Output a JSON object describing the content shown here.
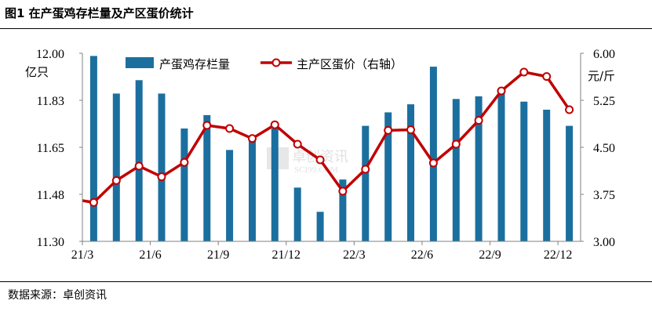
{
  "figure_title": "图1 在产蛋鸡存栏量及产区蛋价统计",
  "source": "数据来源：卓创资讯",
  "watermark": {
    "cn": "卓创资讯",
    "en": "SCI99.COM"
  },
  "colors": {
    "bar": "#1b6f9f",
    "line": "#c00000",
    "marker_fill": "#ffffff",
    "axis": "#808080"
  },
  "chart_data": {
    "type": "bar+line",
    "title": "图1 在产蛋鸡存栏量及产区蛋价统计",
    "left_axis": {
      "unit": "亿只",
      "ticks": [
        "12.00",
        "11.83",
        "11.65",
        "11.48",
        "11.30"
      ],
      "min": 11.3,
      "max": 12.0
    },
    "right_axis": {
      "unit": "元/斤",
      "ticks": [
        "6.00",
        "5.25",
        "4.50",
        "3.75",
        "3.00"
      ],
      "min": 3.0,
      "max": 6.0
    },
    "x_tick_labels": [
      "21/3",
      "21/6",
      "21/9",
      "21/12",
      "22/3",
      "22/6",
      "22/9",
      "22/12"
    ],
    "x_tick_months": [
      "2021-03",
      "2021-06",
      "2021-09",
      "2021-12",
      "2022-03",
      "2022-06",
      "2022-09",
      "2022-12"
    ],
    "months": [
      "2021-03",
      "2021-04",
      "2021-05",
      "2021-06",
      "2021-07",
      "2021-08",
      "2021-09",
      "2021-10",
      "2021-11",
      "2021-12",
      "2022-01",
      "2022-02",
      "2022-03",
      "2022-04",
      "2022-05",
      "2022-06",
      "2022-07",
      "2022-08",
      "2022-09",
      "2022-10",
      "2022-11",
      "2022-12"
    ],
    "series": [
      {
        "name": "产蛋鸡存栏量",
        "type": "bar",
        "axis": "left",
        "values": [
          11.99,
          11.85,
          11.9,
          11.85,
          11.72,
          11.77,
          11.64,
          11.69,
          11.72,
          11.5,
          11.41,
          11.53,
          11.73,
          11.78,
          11.81,
          11.95,
          11.83,
          11.84,
          11.85,
          11.82,
          11.79,
          11.73
        ]
      },
      {
        "name": "主产区蛋价（右轴）",
        "type": "line",
        "axis": "right",
        "marker": "circle",
        "start_value": 3.65,
        "values": [
          3.62,
          3.97,
          4.2,
          4.03,
          4.26,
          4.85,
          4.8,
          4.64,
          4.86,
          4.55,
          4.3,
          3.8,
          4.15,
          4.77,
          4.78,
          4.25,
          4.55,
          4.93,
          5.4,
          5.7,
          5.63,
          5.1
        ]
      }
    ],
    "legend": {
      "placement": "top",
      "entries": [
        "产蛋鸡存栏量",
        "主产区蛋价（右轴）"
      ]
    },
    "grid": false
  }
}
